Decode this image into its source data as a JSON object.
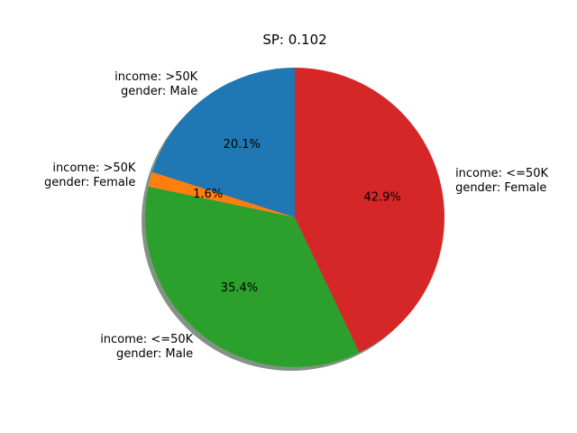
{
  "chart_data": {
    "type": "pie",
    "title": "SP: 0.102",
    "shadow": true,
    "slices": [
      {
        "label_lines": [
          "income: >50K",
          "gender: Male"
        ],
        "value": 20.1,
        "pct_label": "20.1%",
        "color": "#1f77b4"
      },
      {
        "label_lines": [
          "income: >50K",
          "gender: Female"
        ],
        "value": 1.6,
        "pct_label": "1.6%",
        "color": "#ff7f0e"
      },
      {
        "label_lines": [
          "income: <=50K",
          "gender: Male"
        ],
        "value": 35.4,
        "pct_label": "35.4%",
        "color": "#2ca02c"
      },
      {
        "label_lines": [
          "income: <=50K",
          "gender: Female"
        ],
        "value": 42.9,
        "pct_label": "42.9%",
        "color": "#d62728"
      }
    ]
  }
}
